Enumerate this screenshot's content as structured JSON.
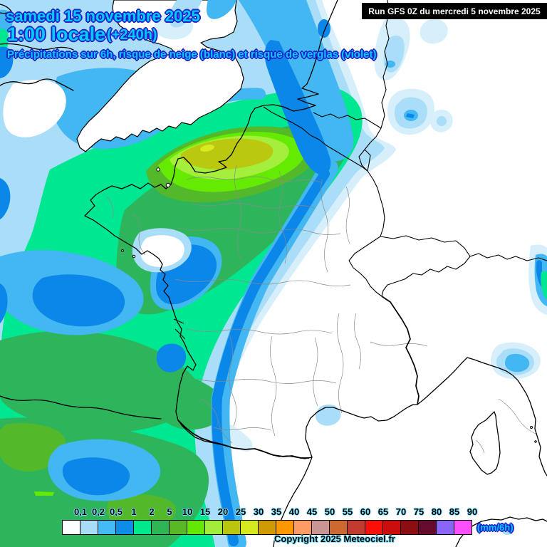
{
  "header": {
    "date_line": "samedi 15 novembre 2025",
    "time_line": "1:00 locale",
    "offset": "(+240h)",
    "subtitle": "Précipitations sur 6h, risque de neige (blanc) et risque de verglas (violet)",
    "run_info": "Run GFS 0Z du mercredi 5 novembre 2025"
  },
  "legend": {
    "unit": "(mm/6h)",
    "copyright": "Copyright 2025 Meteociel.fr",
    "ticks": [
      "0,1",
      "0,2",
      "0,5",
      "1",
      "2",
      "5",
      "10",
      "15",
      "20",
      "25",
      "30",
      "35",
      "40",
      "45",
      "50",
      "55",
      "60",
      "65",
      "70",
      "75",
      "80",
      "85",
      "90"
    ],
    "colors": [
      "#ffffff",
      "#a8ddf8",
      "#44bbf5",
      "#0d8ce8",
      "#00e88c",
      "#2eb556",
      "#5ab828",
      "#63e800",
      "#a2ed3a",
      "#b8c70e",
      "#d4ea1f",
      "#cf9a02",
      "#ff9800",
      "#ff9c66",
      "#c89595",
      "#cc6830",
      "#c23b31",
      "#fa1009",
      "#cb0d0d",
      "#8c0d12",
      "#650b2e",
      "#8a66f8",
      "#fc50fc"
    ]
  },
  "map": {
    "description": "GFS precipitation forecast map over France",
    "accent_text_color": "#00ccff",
    "outline_color": "#2222cc"
  }
}
